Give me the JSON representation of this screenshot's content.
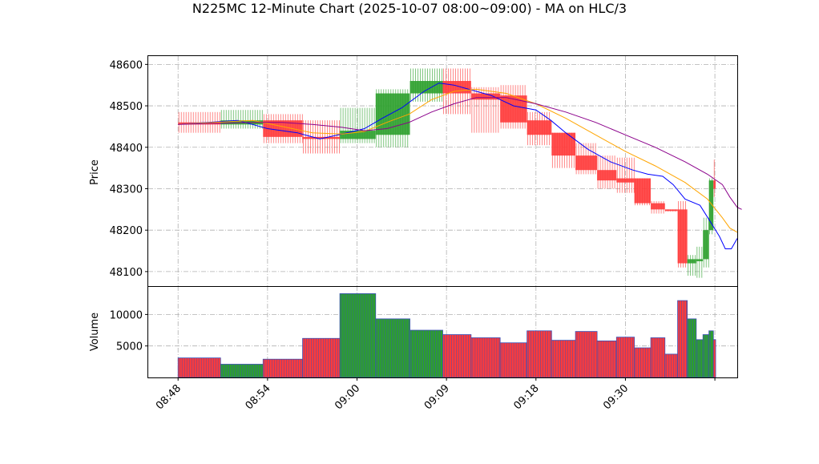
{
  "chart_data": {
    "type": "candlestick",
    "title": "N225MC 12-Minute Chart (2025-10-07 08:00~09:00) - MA on HLC/3",
    "price_panel": {
      "ylabel": "Price",
      "ylim": [
        48065,
        48620
      ],
      "yticks": [
        48100,
        48200,
        48300,
        48400,
        48500,
        48600
      ],
      "grid": true
    },
    "volume_panel": {
      "ylabel": "Volume",
      "ylim": [
        0,
        14500
      ],
      "yticks": [
        5000,
        10000
      ],
      "grid": true
    },
    "x_axis": {
      "tick_labels": [
        "08:48",
        "08:54",
        "09:00",
        "09:09",
        "09:18",
        "09:30",
        ""
      ],
      "tick_positions": [
        0,
        6,
        12,
        18,
        24,
        30,
        36
      ],
      "xlim": [
        -2,
        37.5
      ]
    },
    "colors": {
      "up": "#2ca02c",
      "down": "#ff3a3a",
      "ma_fast": "#0000ff",
      "ma_mid": "#ffa500",
      "ma_slow": "#8b008b",
      "volume_edge": "#3a4fb5"
    },
    "candles": [
      {
        "x": 0.0,
        "w": 2.85,
        "open": 48460,
        "high": 48485,
        "low": 48435,
        "close": 48455,
        "volume": 3100
      },
      {
        "x": 2.85,
        "w": 2.85,
        "open": 48455,
        "high": 48490,
        "low": 48445,
        "close": 48465,
        "volume": 2100
      },
      {
        "x": 5.7,
        "w": 2.65,
        "open": 48465,
        "high": 48480,
        "low": 48410,
        "close": 48425,
        "volume": 2900
      },
      {
        "x": 8.35,
        "w": 2.5,
        "open": 48425,
        "high": 48465,
        "low": 48385,
        "close": 48420,
        "volume": 6200
      },
      {
        "x": 10.85,
        "w": 2.4,
        "open": 48420,
        "high": 48495,
        "low": 48410,
        "close": 48440,
        "volume": 13300
      },
      {
        "x": 13.25,
        "w": 2.3,
        "open": 48430,
        "high": 48540,
        "low": 48400,
        "close": 48530,
        "volume": 9300
      },
      {
        "x": 15.55,
        "w": 2.2,
        "open": 48530,
        "high": 48590,
        "low": 48510,
        "close": 48560,
        "volume": 7500
      },
      {
        "x": 17.75,
        "w": 1.9,
        "open": 48560,
        "high": 48590,
        "low": 48480,
        "close": 48530,
        "volume": 6800
      },
      {
        "x": 19.65,
        "w": 1.95,
        "open": 48530,
        "high": 48545,
        "low": 48435,
        "close": 48515,
        "volume": 6300
      },
      {
        "x": 21.6,
        "w": 1.8,
        "open": 48525,
        "high": 48550,
        "low": 48445,
        "close": 48460,
        "volume": 5500
      },
      {
        "x": 23.4,
        "w": 1.65,
        "open": 48465,
        "high": 48485,
        "low": 48405,
        "close": 48430,
        "volume": 7400
      },
      {
        "x": 25.05,
        "w": 1.6,
        "open": 48435,
        "high": 48435,
        "low": 48350,
        "close": 48380,
        "volume": 5900
      },
      {
        "x": 26.65,
        "w": 1.45,
        "open": 48380,
        "high": 48410,
        "low": 48335,
        "close": 48345,
        "volume": 7300
      },
      {
        "x": 28.1,
        "w": 1.3,
        "open": 48345,
        "high": 48380,
        "low": 48300,
        "close": 48320,
        "volume": 5800
      },
      {
        "x": 29.4,
        "w": 1.2,
        "open": 48325,
        "high": 48375,
        "low": 48290,
        "close": 48315,
        "volume": 6400
      },
      {
        "x": 30.6,
        "w": 1.1,
        "open": 48325,
        "high": 48325,
        "low": 48260,
        "close": 48265,
        "volume": 4700
      },
      {
        "x": 31.7,
        "w": 0.95,
        "open": 48265,
        "high": 48270,
        "low": 48240,
        "close": 48250,
        "volume": 6300
      },
      {
        "x": 32.65,
        "w": 0.85,
        "open": 48250,
        "high": 48250,
        "low": 48245,
        "close": 48248,
        "volume": 3700
      },
      {
        "x": 33.5,
        "w": 0.65,
        "open": 48250,
        "high": 48270,
        "low": 48110,
        "close": 48120,
        "volume": 12200
      },
      {
        "x": 34.15,
        "w": 0.6,
        "open": 48120,
        "high": 48140,
        "low": 48090,
        "close": 48130,
        "volume": 9300
      },
      {
        "x": 34.75,
        "w": 0.45,
        "open": 48125,
        "high": 48160,
        "low": 48085,
        "close": 48130,
        "volume": 6000
      },
      {
        "x": 35.2,
        "w": 0.4,
        "open": 48130,
        "high": 48230,
        "low": 48110,
        "close": 48200,
        "volume": 6800
      },
      {
        "x": 35.6,
        "w": 0.3,
        "open": 48200,
        "high": 48325,
        "low": 48190,
        "close": 48320,
        "volume": 7400
      },
      {
        "x": 35.9,
        "w": 0.15,
        "open": 48320,
        "high": 48370,
        "low": 48280,
        "close": 48300,
        "volume": 6000
      }
    ],
    "series": [
      {
        "style": "ma_fast",
        "points": [
          [
            0,
            48455
          ],
          [
            4,
            48465
          ],
          [
            6,
            48445
          ],
          [
            8,
            48435
          ],
          [
            9.5,
            48420
          ],
          [
            11,
            48432
          ],
          [
            12.5,
            48445
          ],
          [
            13.7,
            48470
          ],
          [
            15,
            48495
          ],
          [
            16.5,
            48535
          ],
          [
            17.5,
            48555
          ],
          [
            18.5,
            48550
          ],
          [
            19.5,
            48540
          ],
          [
            21,
            48525
          ],
          [
            22.5,
            48500
          ],
          [
            24,
            48490
          ],
          [
            25,
            48465
          ],
          [
            26,
            48435
          ],
          [
            27.5,
            48395
          ],
          [
            29,
            48365
          ],
          [
            30.5,
            48345
          ],
          [
            31.5,
            48335
          ],
          [
            32.5,
            48330
          ],
          [
            33.2,
            48310
          ],
          [
            34,
            48275
          ],
          [
            35,
            48260
          ],
          [
            35.7,
            48220
          ],
          [
            36.3,
            48185
          ],
          [
            36.7,
            48155
          ],
          [
            37.1,
            48155
          ],
          [
            37.5,
            48180
          ]
        ]
      },
      {
        "style": "ma_mid",
        "points": [
          [
            0,
            48455
          ],
          [
            5,
            48465
          ],
          [
            7,
            48450
          ],
          [
            9,
            48435
          ],
          [
            11,
            48432
          ],
          [
            12.5,
            48438
          ],
          [
            14,
            48460
          ],
          [
            15.5,
            48480
          ],
          [
            17,
            48515
          ],
          [
            18.5,
            48535
          ],
          [
            20,
            48540
          ],
          [
            22,
            48530
          ],
          [
            24,
            48505
          ],
          [
            26,
            48470
          ],
          [
            28,
            48430
          ],
          [
            30,
            48390
          ],
          [
            32,
            48355
          ],
          [
            34,
            48315
          ],
          [
            35.5,
            48275
          ],
          [
            36.5,
            48230
          ],
          [
            37,
            48205
          ],
          [
            37.5,
            48195
          ]
        ]
      },
      {
        "style": "ma_slow",
        "points": [
          [
            0,
            48455
          ],
          [
            5,
            48460
          ],
          [
            7,
            48460
          ],
          [
            9,
            48455
          ],
          [
            11,
            48448
          ],
          [
            12.5,
            48440
          ],
          [
            14,
            48445
          ],
          [
            15.5,
            48460
          ],
          [
            17,
            48485
          ],
          [
            18.5,
            48505
          ],
          [
            20,
            48520
          ],
          [
            22,
            48520
          ],
          [
            24,
            48505
          ],
          [
            26,
            48485
          ],
          [
            28,
            48460
          ],
          [
            30,
            48430
          ],
          [
            32,
            48400
          ],
          [
            34,
            48365
          ],
          [
            35.5,
            48335
          ],
          [
            36.5,
            48310
          ],
          [
            37,
            48280
          ],
          [
            37.5,
            48255
          ],
          [
            37.8,
            48250
          ]
        ]
      }
    ]
  }
}
